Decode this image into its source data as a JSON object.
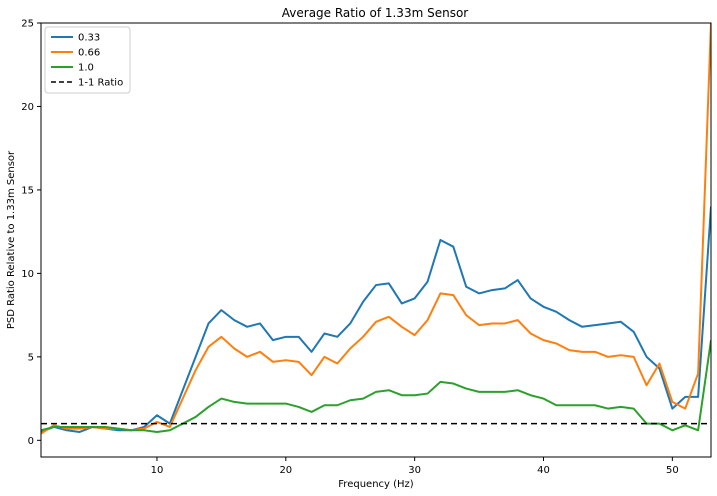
{
  "chart_data": {
    "type": "line",
    "title": "Average Ratio of 1.33m Sensor",
    "xlabel": "Frequency (Hz)",
    "ylabel": "PSD Ratio Relative to 1.33m Sensor",
    "xlim": [
      1,
      53
    ],
    "ylim": [
      -1,
      25
    ],
    "xticks": [
      10,
      20,
      30,
      40,
      50
    ],
    "yticks": [
      0,
      5,
      10,
      15,
      20,
      25
    ],
    "grid": false,
    "legend_position": "top-left",
    "series": [
      {
        "name": "0.33",
        "color": "#1f77b4",
        "dash": "solid",
        "x": [
          1,
          2,
          3,
          4,
          5,
          6,
          7,
          8,
          9,
          10,
          11,
          12,
          13,
          14,
          15,
          16,
          17,
          18,
          19,
          20,
          21,
          22,
          23,
          24,
          25,
          26,
          27,
          28,
          29,
          30,
          31,
          32,
          33,
          34,
          35,
          36,
          37,
          38,
          39,
          40,
          41,
          42,
          43,
          44,
          45,
          46,
          47,
          48,
          49,
          50,
          51,
          52,
          53
        ],
        "y": [
          0.5,
          0.8,
          0.6,
          0.5,
          0.8,
          0.7,
          0.6,
          0.6,
          0.8,
          1.5,
          1.0,
          3.0,
          5.0,
          7.0,
          7.8,
          7.2,
          6.8,
          7.0,
          6.0,
          6.2,
          6.2,
          5.3,
          6.4,
          6.2,
          7.0,
          8.3,
          9.3,
          9.4,
          8.2,
          8.5,
          9.5,
          12.0,
          11.6,
          9.2,
          8.8,
          9.0,
          9.1,
          9.6,
          8.5,
          8.0,
          7.7,
          7.2,
          6.8,
          6.9,
          7.0,
          7.1,
          6.5,
          5.0,
          4.3,
          1.9,
          2.6,
          2.6,
          14.0
        ]
      },
      {
        "name": "0.66",
        "color": "#ff7f0e",
        "dash": "solid",
        "x": [
          1,
          2,
          3,
          4,
          5,
          6,
          7,
          8,
          9,
          10,
          11,
          12,
          13,
          14,
          15,
          16,
          17,
          18,
          19,
          20,
          21,
          22,
          23,
          24,
          25,
          26,
          27,
          28,
          29,
          30,
          31,
          32,
          33,
          34,
          35,
          36,
          37,
          38,
          39,
          40,
          41,
          42,
          43,
          44,
          45,
          46,
          47,
          48,
          49,
          50,
          51,
          52,
          53
        ],
        "y": [
          0.4,
          0.9,
          0.7,
          0.7,
          0.8,
          0.7,
          0.7,
          0.6,
          0.7,
          1.1,
          0.8,
          2.5,
          4.2,
          5.6,
          6.2,
          5.5,
          5.0,
          5.3,
          4.7,
          4.8,
          4.7,
          3.9,
          5.0,
          4.6,
          5.5,
          6.2,
          7.1,
          7.4,
          6.8,
          6.3,
          7.2,
          8.8,
          8.7,
          7.5,
          6.9,
          7.0,
          7.0,
          7.2,
          6.4,
          6.0,
          5.8,
          5.4,
          5.3,
          5.3,
          5.0,
          5.1,
          5.0,
          3.3,
          4.6,
          2.3,
          1.9,
          4.0,
          25.0
        ]
      },
      {
        "name": "1.0",
        "color": "#2ca02c",
        "dash": "solid",
        "x": [
          1,
          2,
          3,
          4,
          5,
          6,
          7,
          8,
          9,
          10,
          11,
          12,
          13,
          14,
          15,
          16,
          17,
          18,
          19,
          20,
          21,
          22,
          23,
          24,
          25,
          26,
          27,
          28,
          29,
          30,
          31,
          32,
          33,
          34,
          35,
          36,
          37,
          38,
          39,
          40,
          41,
          42,
          43,
          44,
          45,
          46,
          47,
          48,
          49,
          50,
          51,
          52,
          53
        ],
        "y": [
          0.6,
          0.8,
          0.8,
          0.8,
          0.8,
          0.8,
          0.7,
          0.6,
          0.6,
          0.5,
          0.6,
          1.0,
          1.4,
          2.0,
          2.5,
          2.3,
          2.2,
          2.2,
          2.2,
          2.2,
          2.0,
          1.7,
          2.1,
          2.1,
          2.4,
          2.5,
          2.9,
          3.0,
          2.7,
          2.7,
          2.8,
          3.5,
          3.4,
          3.1,
          2.9,
          2.9,
          2.9,
          3.0,
          2.7,
          2.5,
          2.1,
          2.1,
          2.1,
          2.1,
          1.9,
          2.0,
          1.9,
          1.0,
          1.0,
          0.6,
          0.9,
          0.6,
          6.0
        ]
      },
      {
        "name": "1-1 Ratio",
        "color": "#000000",
        "dash": "dashed",
        "x": [
          1,
          53
        ],
        "y": [
          1.0,
          1.0
        ]
      }
    ]
  }
}
